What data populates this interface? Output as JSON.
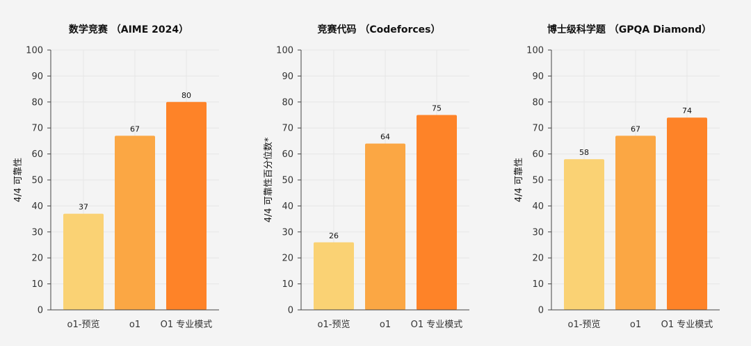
{
  "chart_data": [
    {
      "type": "bar",
      "title": "数学竞赛 （AIME 2024）",
      "xlabel": "",
      "ylabel": "4/4 可靠性",
      "categories": [
        "o1-预览",
        "o1",
        "O1 专业模式"
      ],
      "values": [
        37,
        67,
        80
      ],
      "colors": [
        "#fad274",
        "#fba744",
        "#fe8328"
      ],
      "ylim": [
        0,
        100
      ],
      "yticks": [
        0,
        10,
        20,
        30,
        40,
        50,
        60,
        70,
        80,
        90,
        100
      ],
      "grid": true
    },
    {
      "type": "bar",
      "title": "竞赛代码 （Codeforces）",
      "xlabel": "",
      "ylabel": "4/4 可靠性百分位数*",
      "categories": [
        "o1-预览",
        "o1",
        "O1 专业模式"
      ],
      "values": [
        26,
        64,
        75
      ],
      "colors": [
        "#fad274",
        "#fba744",
        "#fe8328"
      ],
      "ylim": [
        0,
        100
      ],
      "yticks": [
        0,
        10,
        20,
        30,
        40,
        50,
        60,
        70,
        80,
        90,
        100
      ],
      "grid": true
    },
    {
      "type": "bar",
      "title": "博士级科学题 （GPQA Diamond）",
      "xlabel": "",
      "ylabel": "4/4 可靠性",
      "categories": [
        "o1-预览",
        "o1",
        "O1 专业模式"
      ],
      "values": [
        58,
        67,
        74
      ],
      "colors": [
        "#fad274",
        "#fba744",
        "#fe8328"
      ],
      "ylim": [
        0,
        100
      ],
      "yticks": [
        0,
        10,
        20,
        30,
        40,
        50,
        60,
        70,
        80,
        90,
        100
      ],
      "grid": true
    }
  ]
}
